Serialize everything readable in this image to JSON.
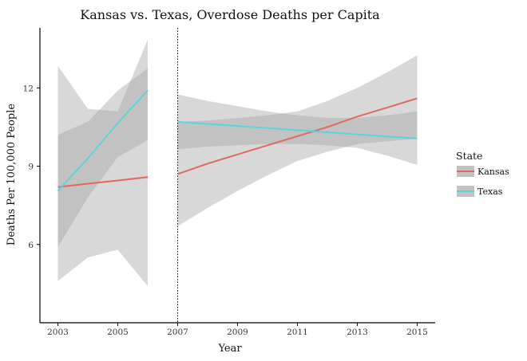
{
  "chart_data": {
    "type": "line",
    "title": "Kansas vs. Texas, Overdose Deaths per Capita",
    "xlabel": "Year",
    "ylabel": "Deaths Per 100,000 People",
    "xlim": [
      2002.4,
      2015.6
    ],
    "ylim": [
      3,
      14.3
    ],
    "x_ticks": [
      2003,
      2005,
      2007,
      2009,
      2011,
      2013,
      2015
    ],
    "y_ticks": [
      6,
      9,
      12
    ],
    "vline": {
      "x": 2007,
      "style": "dotted"
    },
    "grid": false,
    "legend": {
      "title": "State",
      "position": "right"
    },
    "series": [
      {
        "name": "Kansas",
        "color": "#e0695f",
        "segments": [
          {
            "x": [
              2003,
              2004,
              2005,
              2006
            ],
            "fit": [
              8.2,
              8.33,
              8.45,
              8.58
            ],
            "lower": [
              5.9,
              7.8,
              9.35,
              10.0
            ],
            "upper": [
              10.2,
              10.7,
              11.9,
              12.75
            ]
          },
          {
            "x": [
              2007,
              2008,
              2009,
              2010,
              2011,
              2012,
              2013,
              2014,
              2015
            ],
            "fit": [
              8.7,
              9.1,
              9.45,
              9.8,
              10.15,
              10.5,
              10.9,
              11.25,
              11.6
            ],
            "lower": [
              6.7,
              7.4,
              8.05,
              8.65,
              9.2,
              9.55,
              9.85,
              9.95,
              10.05
            ],
            "upper": [
              10.7,
              10.75,
              10.85,
              10.95,
              11.1,
              11.5,
              12.0,
              12.6,
              13.25
            ]
          }
        ]
      },
      {
        "name": "Texas",
        "color": "#5bd3db",
        "segments": [
          {
            "x": [
              2003,
              2004,
              2005,
              2006
            ],
            "fit": [
              8.05,
              9.3,
              10.65,
              11.9
            ],
            "lower": [
              4.6,
              5.5,
              5.8,
              4.4
            ],
            "upper": [
              12.85,
              11.2,
              11.1,
              13.85
            ]
          },
          {
            "x": [
              2007,
              2008,
              2009,
              2010,
              2011,
              2012,
              2013,
              2014,
              2015
            ],
            "fit": [
              10.7,
              10.62,
              10.54,
              10.46,
              10.38,
              10.3,
              10.22,
              10.14,
              10.06
            ],
            "lower": [
              9.65,
              9.75,
              9.8,
              9.85,
              9.85,
              9.8,
              9.7,
              9.4,
              9.05
            ],
            "upper": [
              11.75,
              11.5,
              11.3,
              11.1,
              10.95,
              10.85,
              10.85,
              10.95,
              11.1
            ]
          }
        ]
      }
    ]
  }
}
